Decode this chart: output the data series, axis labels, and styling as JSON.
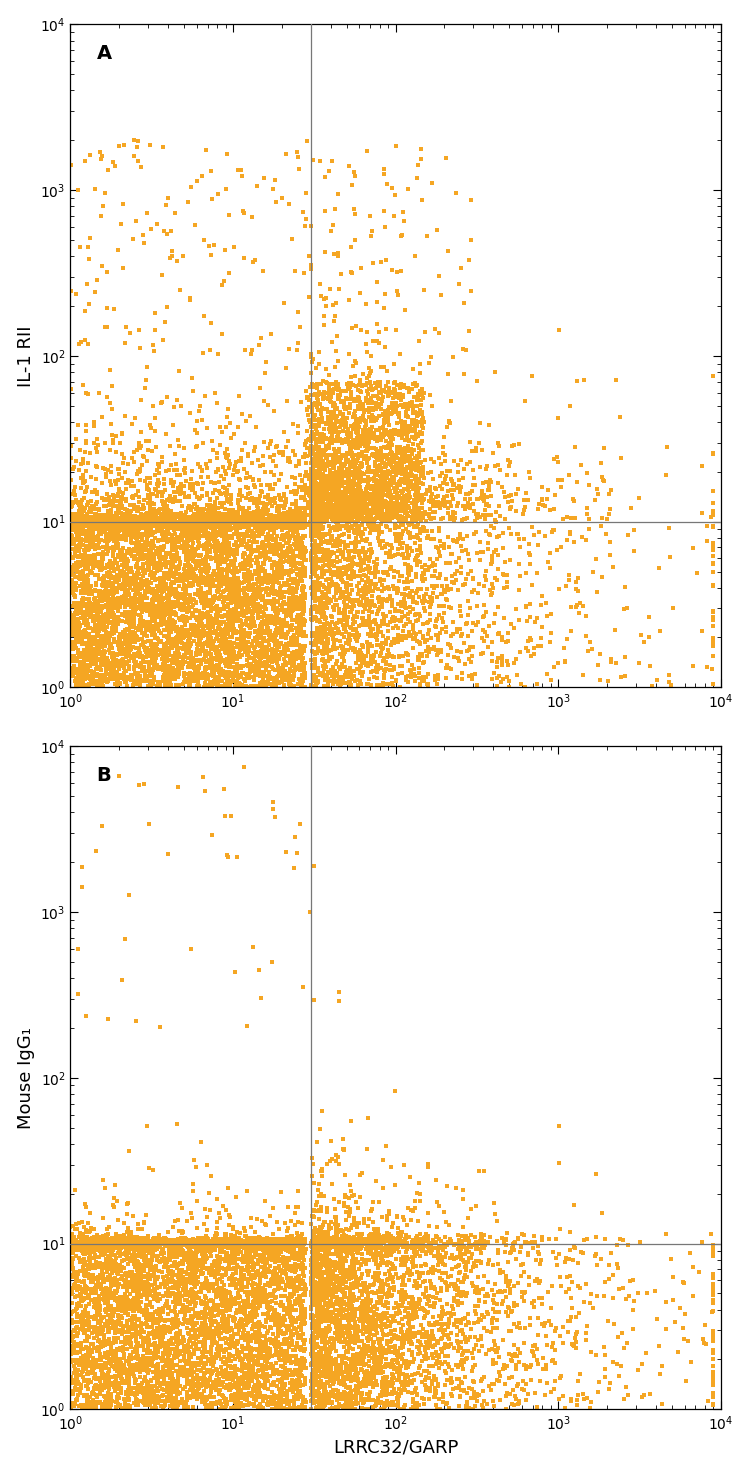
{
  "panel_A": {
    "label": "A",
    "ylabel": "IL-1 RII",
    "vline": 30,
    "hline": 10,
    "xlim": [
      1,
      10000
    ],
    "ylim": [
      1,
      10000
    ],
    "n_points": 12000,
    "seed": 42
  },
  "panel_B": {
    "label": "B",
    "ylabel": "Mouse IgG₁",
    "vline": 30,
    "hline": 10,
    "xlim": [
      1,
      10000
    ],
    "ylim": [
      1,
      10000
    ],
    "n_points": 10000,
    "seed": 7
  },
  "xlabel": "LRRC32/GARP",
  "dot_color": "#F5A623",
  "dot_size": 9,
  "line_color": "#777777",
  "line_width": 0.9,
  "background_color": "#ffffff",
  "axis_label_fontsize": 13,
  "panel_label_fontsize": 14
}
